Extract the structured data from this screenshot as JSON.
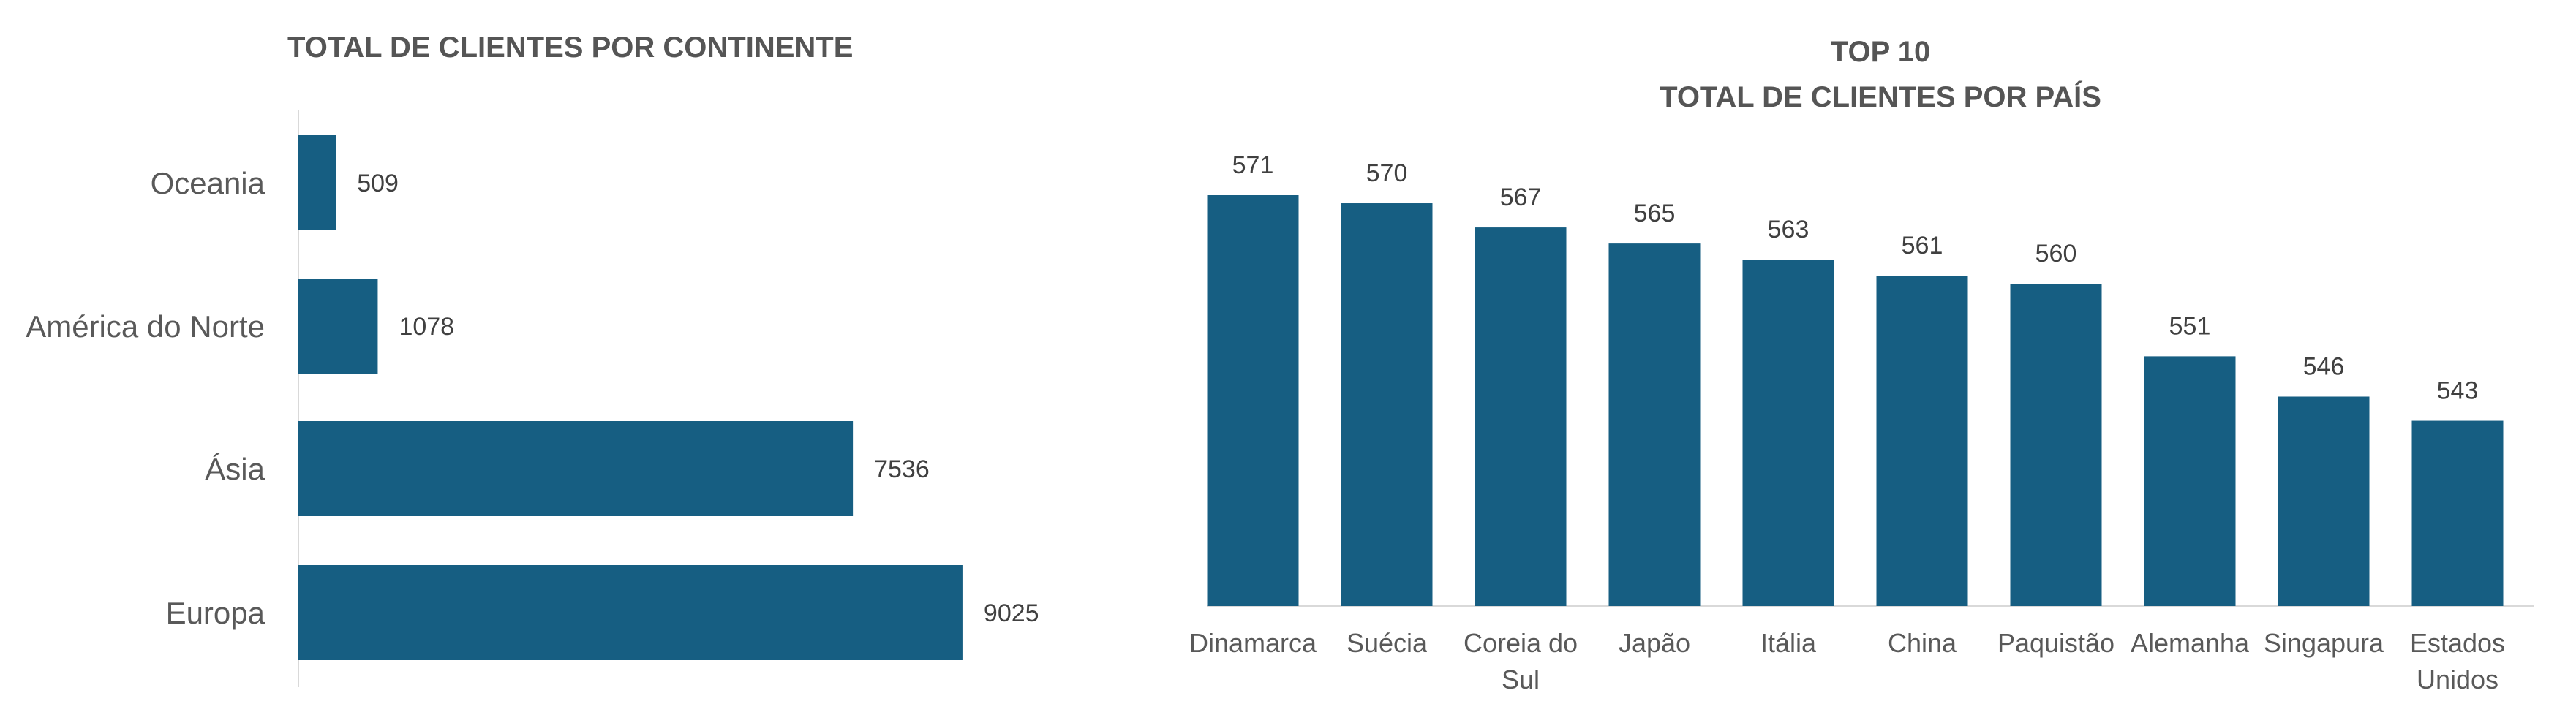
{
  "chart_data": [
    {
      "type": "bar",
      "orientation": "horizontal",
      "title": "TOTAL DE CLIENTES POR CONTINENTE",
      "categories": [
        "Oceania",
        "América do Norte",
        "Ásia",
        "Europa"
      ],
      "values": [
        509,
        1078,
        7536,
        9025
      ],
      "xlim": [
        0,
        10000
      ],
      "grid": false,
      "legend": "none",
      "color": "#165E82"
    },
    {
      "type": "bar",
      "orientation": "vertical",
      "title_lines": [
        "TOP 10",
        "TOTAL DE CLIENTES POR PAÍS"
      ],
      "categories": [
        "Dinamarca",
        "Suécia",
        "Coreia do Sul",
        "Japão",
        "Itália",
        "China",
        "Paquistão",
        "Alemanha",
        "Singapura",
        "Estados Unidos"
      ],
      "category_lines": [
        [
          "Dinamarca"
        ],
        [
          "Suécia"
        ],
        [
          "Coreia do",
          "Sul"
        ],
        [
          "Japão"
        ],
        [
          "Itália"
        ],
        [
          "China"
        ],
        [
          "Paquistão"
        ],
        [
          "Alemanha"
        ],
        [
          "Singapura"
        ],
        [
          "Estados",
          "Unidos"
        ]
      ],
      "values": [
        571,
        570,
        567,
        565,
        563,
        561,
        560,
        551,
        546,
        543
      ],
      "ylim": [
        520,
        572
      ],
      "grid": false,
      "legend": "none",
      "color": "#165E82"
    }
  ]
}
